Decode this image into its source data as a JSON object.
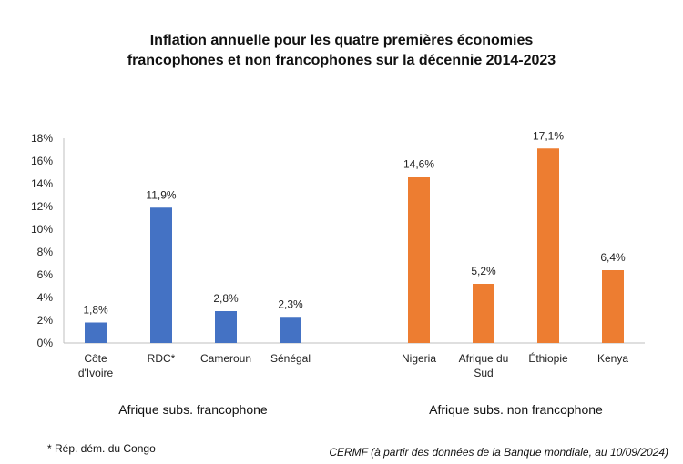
{
  "chart_data": {
    "type": "bar",
    "title_line1": "Inflation annuelle pour les quatre premières économies",
    "title_line2": "francophones et non francophones sur la décennie 2014-2023",
    "xlabel": "",
    "ylabel": "",
    "ylim": [
      0,
      18
    ],
    "yticks": [
      "0%",
      "2%",
      "4%",
      "6%",
      "8%",
      "10%",
      "12%",
      "14%",
      "16%",
      "18%"
    ],
    "grid": false,
    "groups": [
      {
        "name": "Afrique subs.  francophone",
        "color": "#4472C4",
        "categories": [
          [
            "Côte",
            "d'Ivoire"
          ],
          [
            "RDC*"
          ],
          [
            "Cameroun"
          ],
          [
            "Sénégal"
          ]
        ],
        "values": [
          1.8,
          11.9,
          2.8,
          2.3
        ],
        "labels": [
          "1,8%",
          "11,9%",
          "2,8%",
          "2,3%"
        ]
      },
      {
        "name": "Afrique subs.  non francophone",
        "color": "#ED7D31",
        "categories": [
          [
            "Nigeria"
          ],
          [
            "Afrique du",
            "Sud"
          ],
          [
            "Éthiopie"
          ],
          [
            "Kenya"
          ]
        ],
        "values": [
          14.6,
          5.2,
          17.1,
          6.4
        ],
        "labels": [
          "14,6%",
          "5,2%",
          "17,1%",
          "6,4%"
        ]
      }
    ]
  },
  "footnote": "* Rép. dém. du Congo",
  "source": "CERMF (à partir des données de la Banque mondiale, au 10/09/2024)"
}
